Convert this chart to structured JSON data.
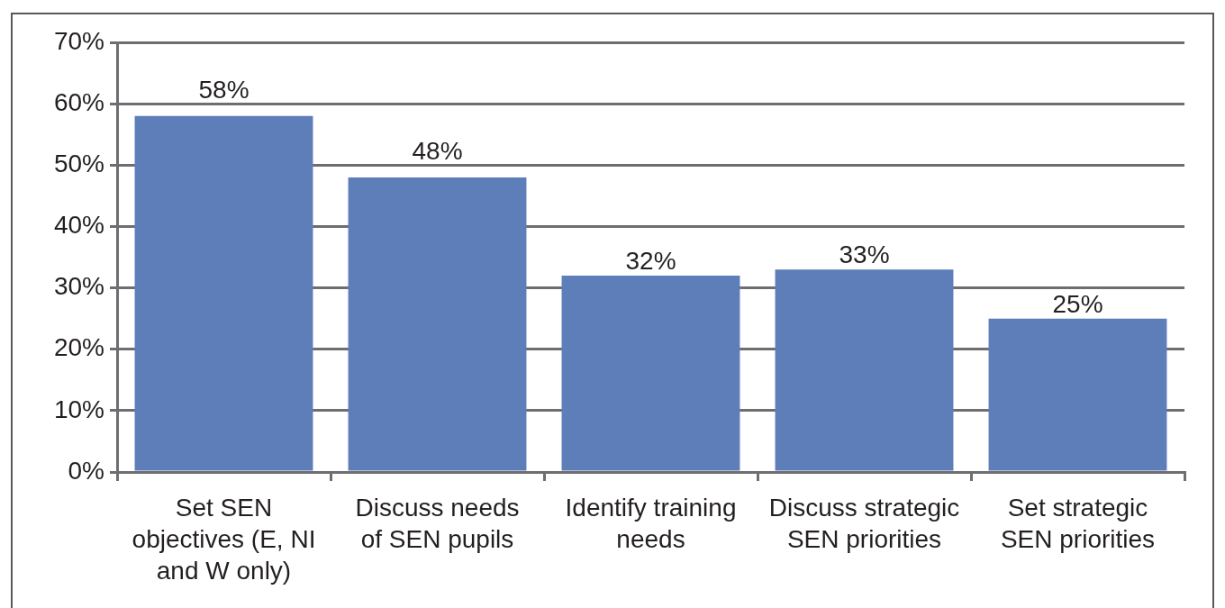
{
  "chart_data": {
    "type": "bar",
    "categories": [
      "Set SEN objectives (E, NI and W only)",
      "Discuss needs of SEN pupils",
      "Identify training needs",
      "Discuss strategic SEN priorities",
      "Set strategic SEN priorities"
    ],
    "values": [
      58,
      48,
      32,
      33,
      25
    ],
    "value_labels": [
      "58%",
      "48%",
      "32%",
      "33%",
      "25%"
    ],
    "color": "#5e7eb9",
    "ylim": [
      0,
      70
    ],
    "yticks": [
      {
        "value": 0,
        "label": "0%"
      },
      {
        "value": 10,
        "label": "10%"
      },
      {
        "value": 20,
        "label": "20%"
      },
      {
        "value": 30,
        "label": "30%"
      },
      {
        "value": 40,
        "label": "40%"
      },
      {
        "value": 50,
        "label": "50%"
      },
      {
        "value": 60,
        "label": "60%"
      },
      {
        "value": 70,
        "label": "70%"
      }
    ],
    "grid": "y"
  }
}
